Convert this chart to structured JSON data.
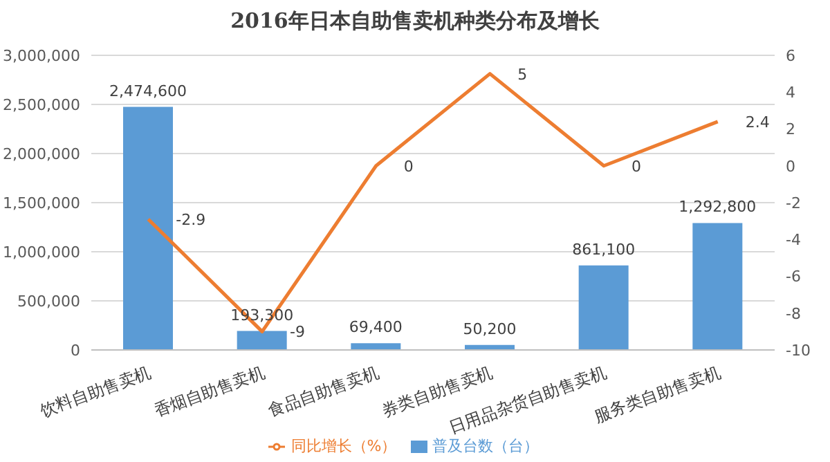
{
  "chart_data": {
    "type": "bar",
    "title": "2016年日本自助售卖机种类分布及增长",
    "categories": [
      "饮料自助售卖机",
      "香烟自助售卖机",
      "食品自助售卖机",
      "券类自助售卖机",
      "日用品杂货自助售卖机",
      "服务类自助售卖机"
    ],
    "series": [
      {
        "name": "普及台数（台）",
        "color": "#5b9bd5",
        "values": [
          2474600,
          193300,
          69400,
          50200,
          861100,
          1292800
        ],
        "value_labels": [
          "2,474,600",
          "193,300",
          "69,400",
          "50,200",
          "861,100",
          "1,292,800"
        ]
      },
      {
        "name": "同比增长（%）",
        "type": "line",
        "axis": "y2",
        "color": "#ed7d31",
        "values": [
          -2.9,
          -9,
          0,
          5,
          0,
          2.4
        ],
        "value_labels": [
          "-2.9",
          "-9",
          "0",
          "5",
          "0",
          "2.4"
        ]
      }
    ],
    "ylim": [
      0,
      3000000
    ],
    "yticks": [
      {
        "value": 0,
        "label": "0"
      },
      {
        "value": 500000,
        "label": "500,000"
      },
      {
        "value": 1000000,
        "label": "1,000,000"
      },
      {
        "value": 1500000,
        "label": "1,500,000"
      },
      {
        "value": 2000000,
        "label": "2,000,000"
      },
      {
        "value": 2500000,
        "label": "2,500,000"
      },
      {
        "value": 3000000,
        "label": "3,000,000"
      }
    ],
    "y2lim": [
      -10,
      6
    ],
    "y2ticks": [
      -10,
      -8,
      -6,
      -4,
      -2,
      0,
      2,
      4,
      6
    ],
    "grid": "y",
    "legend": "bottom",
    "marker": "none",
    "line_style": "solid"
  }
}
